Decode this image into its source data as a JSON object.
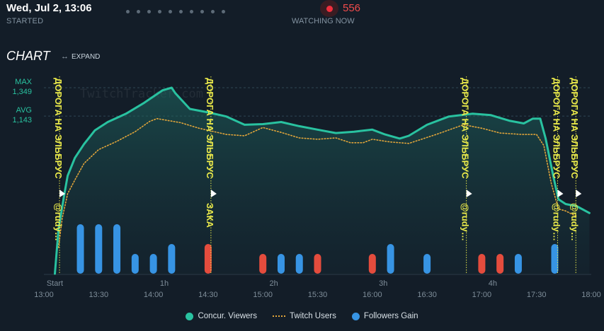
{
  "header": {
    "date": "Wed, Jul 2, 13:06",
    "started_label": "STARTED",
    "viewers": "556",
    "watching_label": "WATCHING NOW",
    "dots_count": 10
  },
  "chart_header": {
    "title": "CHART",
    "expand_label": "EXPAND"
  },
  "colors": {
    "viewers": "#29c2a0",
    "twitch_users": "#e2a53a",
    "followers_gain": "#3794e4",
    "followers_loss": "#e44c3d",
    "annotation": "#e8e84a",
    "background": "#131d28"
  },
  "legend": [
    {
      "label": "Concur. Viewers",
      "icon": "dot",
      "color": "#29c2a0"
    },
    {
      "label": "Twitch Users",
      "icon": "dotted-line",
      "color": "#e2a53a"
    },
    {
      "label": "Followers Gain",
      "icon": "dot",
      "color": "#3794e4"
    }
  ],
  "watermark": "TwitchTracker.com",
  "chart_data": {
    "type": "line",
    "y_markers": [
      {
        "label": "MAX",
        "value": 1349
      },
      {
        "label": "AVG",
        "value": 1143
      }
    ],
    "x_time_labels": [
      "13:00",
      "13:30",
      "14:00",
      "14:30",
      "15:00",
      "15:30",
      "16:00",
      "16:30",
      "17:00",
      "17:30",
      "18:00"
    ],
    "x_duration_labels": [
      "Start",
      "1h",
      "2h",
      "3h",
      "4h"
    ],
    "x_range_minutes": [
      0,
      300
    ],
    "y_range": [
      0,
      1349
    ],
    "series": [
      {
        "name": "Concur. Viewers",
        "style": "area",
        "points": [
          [
            6,
            0
          ],
          [
            8,
            320
          ],
          [
            11,
            560
          ],
          [
            13,
            710
          ],
          [
            17,
            840
          ],
          [
            22,
            940
          ],
          [
            28,
            1040
          ],
          [
            35,
            1100
          ],
          [
            45,
            1160
          ],
          [
            55,
            1240
          ],
          [
            65,
            1330
          ],
          [
            70,
            1349
          ],
          [
            72,
            1310
          ],
          [
            80,
            1195
          ],
          [
            90,
            1170
          ],
          [
            100,
            1140
          ],
          [
            110,
            1080
          ],
          [
            120,
            1085
          ],
          [
            130,
            1100
          ],
          [
            140,
            1070
          ],
          [
            150,
            1045
          ],
          [
            160,
            1020
          ],
          [
            170,
            1030
          ],
          [
            180,
            1045
          ],
          [
            187,
            1010
          ],
          [
            195,
            980
          ],
          [
            200,
            1000
          ],
          [
            210,
            1080
          ],
          [
            222,
            1140
          ],
          [
            235,
            1160
          ],
          [
            245,
            1150
          ],
          [
            255,
            1110
          ],
          [
            263,
            1090
          ],
          [
            268,
            1125
          ],
          [
            272,
            1125
          ],
          [
            275,
            980
          ],
          [
            279,
            720
          ],
          [
            282,
            540
          ],
          [
            286,
            505
          ],
          [
            292,
            490
          ],
          [
            299,
            440
          ]
        ]
      },
      {
        "name": "Twitch Users",
        "style": "dotted",
        "points": [
          [
            8,
            190
          ],
          [
            10,
            400
          ],
          [
            13,
            580
          ],
          [
            17,
            680
          ],
          [
            22,
            800
          ],
          [
            30,
            900
          ],
          [
            40,
            960
          ],
          [
            50,
            1030
          ],
          [
            58,
            1105
          ],
          [
            62,
            1125
          ],
          [
            75,
            1095
          ],
          [
            85,
            1055
          ],
          [
            100,
            1010
          ],
          [
            110,
            1000
          ],
          [
            120,
            1060
          ],
          [
            130,
            1025
          ],
          [
            140,
            985
          ],
          [
            150,
            975
          ],
          [
            160,
            985
          ],
          [
            168,
            950
          ],
          [
            175,
            950
          ],
          [
            180,
            975
          ],
          [
            190,
            955
          ],
          [
            200,
            945
          ],
          [
            215,
            1010
          ],
          [
            230,
            1080
          ],
          [
            240,
            1055
          ],
          [
            250,
            1020
          ],
          [
            262,
            1010
          ],
          [
            270,
            1010
          ],
          [
            274,
            930
          ],
          [
            278,
            660
          ],
          [
            282,
            470
          ],
          [
            286,
            455
          ],
          [
            292,
            415
          ]
        ]
      },
      {
        "name": "Followers Gain",
        "style": "bars",
        "points": [
          {
            "x": 20,
            "v": 5,
            "sign": "gain"
          },
          {
            "x": 30,
            "v": 5,
            "sign": "gain"
          },
          {
            "x": 40,
            "v": 5,
            "sign": "gain"
          },
          {
            "x": 50,
            "v": 2,
            "sign": "gain"
          },
          {
            "x": 60,
            "v": 2,
            "sign": "gain"
          },
          {
            "x": 70,
            "v": 3,
            "sign": "gain"
          },
          {
            "x": 90,
            "v": 3,
            "sign": "loss"
          },
          {
            "x": 120,
            "v": 2,
            "sign": "loss"
          },
          {
            "x": 130,
            "v": 2,
            "sign": "gain"
          },
          {
            "x": 140,
            "v": 2,
            "sign": "gain"
          },
          {
            "x": 150,
            "v": 2,
            "sign": "loss"
          },
          {
            "x": 180,
            "v": 2,
            "sign": "loss"
          },
          {
            "x": 190,
            "v": 3,
            "sign": "gain"
          },
          {
            "x": 210,
            "v": 2,
            "sign": "gain"
          },
          {
            "x": 240,
            "v": 2,
            "sign": "loss"
          },
          {
            "x": 250,
            "v": 2,
            "sign": "loss"
          },
          {
            "x": 260,
            "v": 2,
            "sign": "gain"
          },
          {
            "x": 280,
            "v": 3,
            "sign": "gain"
          }
        ]
      }
    ],
    "annotations": [
      {
        "x": 7,
        "title": "ДОРОГА НА ЭЛЬБРУС",
        "sub": "@rudy…"
      },
      {
        "x": 90,
        "title": "ДОРОГА НА ЭЛЬБРУС",
        "sub": "ЗАКА"
      },
      {
        "x": 230,
        "title": "ДОРОГА НА ЭЛЬБРУС",
        "sub": "@rudy…"
      },
      {
        "x": 280,
        "title": "ДОРОГА НА ЭЛЬБРУС",
        "sub": "@rudy…"
      },
      {
        "x": 290,
        "title": "ДОРОГА НА ЭЛЬБРУС",
        "sub": "@rudy…"
      }
    ]
  }
}
